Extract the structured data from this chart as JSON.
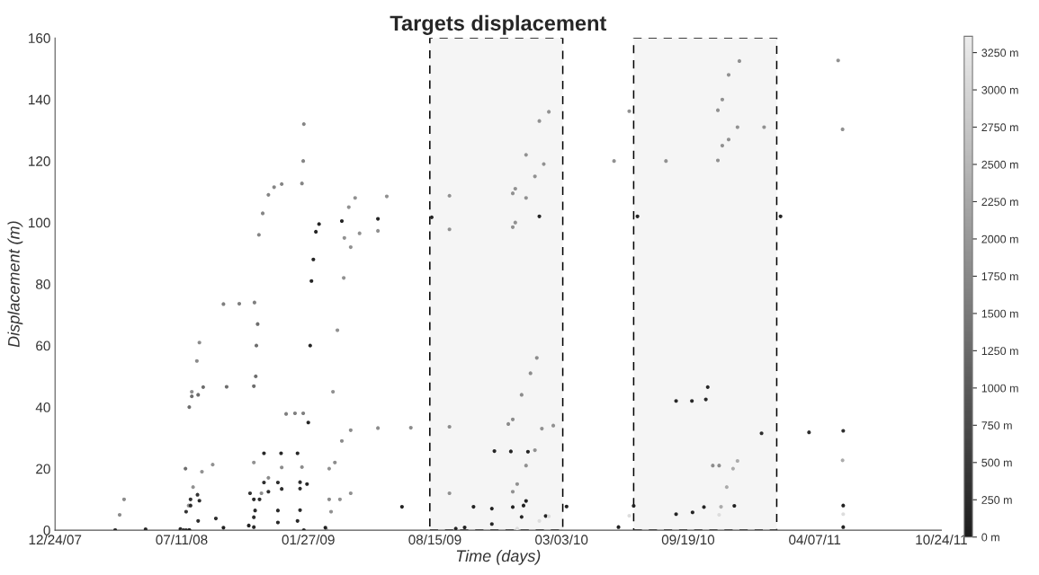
{
  "chart_data": {
    "type": "scatter",
    "title": "Targets displacement",
    "xlabel": "Time (days)",
    "ylabel": "Displacement (m)",
    "marker": "circle",
    "grid": false,
    "xlim": [
      "2007-12-24",
      "2011-10-24"
    ],
    "xticks": [
      {
        "value": "2007-12-24",
        "label": "12/24/07"
      },
      {
        "value": "2008-07-11",
        "label": "07/11/08"
      },
      {
        "value": "2009-01-27",
        "label": "01/27/09"
      },
      {
        "value": "2009-08-15",
        "label": "08/15/09"
      },
      {
        "value": "2010-03-03",
        "label": "03/03/10"
      },
      {
        "value": "2010-09-19",
        "label": "09/19/10"
      },
      {
        "value": "2011-04-07",
        "label": "04/07/11"
      },
      {
        "value": "2011-10-24",
        "label": "10/24/11"
      }
    ],
    "ylim": [
      0,
      160
    ],
    "yticks": [
      0,
      20,
      40,
      60,
      80,
      100,
      120,
      140,
      160
    ],
    "clim": [
      0,
      3360
    ],
    "cticks": [
      {
        "value": 0,
        "label": "0 m"
      },
      {
        "value": 250,
        "label": "250 m"
      },
      {
        "value": 500,
        "label": "500 m"
      },
      {
        "value": 750,
        "label": "750 m"
      },
      {
        "value": 1000,
        "label": "1000 m"
      },
      {
        "value": 1250,
        "label": "1250 m"
      },
      {
        "value": 1500,
        "label": "1500 m"
      },
      {
        "value": 1750,
        "label": "1750 m"
      },
      {
        "value": 2000,
        "label": "2000 m"
      },
      {
        "value": 2250,
        "label": "2250 m"
      },
      {
        "value": 2500,
        "label": "2500 m"
      },
      {
        "value": 2750,
        "label": "2750 m"
      },
      {
        "value": 3000,
        "label": "3000 m"
      },
      {
        "value": 3250,
        "label": "3250 m"
      }
    ],
    "bands": [
      {
        "axis": "x",
        "from": "2009-08-07",
        "to": "2010-03-05",
        "color": "#000000"
      },
      {
        "axis": "x",
        "from": "2010-06-25",
        "to": "2011-02-06",
        "color": "#000000"
      }
    ],
    "series": [
      {
        "x": [
          "2008-03-28",
          "2008-04-04",
          "2008-04-11"
        ],
        "values": [
          0,
          5,
          10
        ],
        "cvalues": [
          1800,
          1800,
          1800
        ]
      },
      {
        "x": [
          "2008-03-28",
          "2008-05-15",
          "2008-07-09"
        ],
        "values": [
          0,
          0.3,
          0.4
        ],
        "cvalues": [
          200,
          200,
          200
        ]
      },
      {
        "x": [
          "2008-07-13",
          "2008-07-17",
          "2008-07-23",
          "2008-07-27",
          "2008-08-06",
          "2008-08-14",
          "2008-09-20",
          "2008-11-02",
          "2008-11-05",
          "2008-11-06",
          "2008-11-08"
        ],
        "values": [
          0,
          20,
          40,
          43.5,
          44,
          46.5,
          46.6,
          46.8,
          50,
          60,
          67
        ],
        "cvalues": [
          1300,
          1300,
          1300,
          1300,
          1300,
          1300,
          1300,
          1300,
          1300,
          1300,
          1300
        ]
      },
      {
        "x": [
          "2008-07-27",
          "2008-08-04",
          "2008-08-08"
        ],
        "values": [
          45,
          55,
          61
        ],
        "cvalues": [
          1800,
          1800,
          1800
        ]
      },
      {
        "x": [
          "2008-09-15",
          "2008-10-10",
          "2008-11-03"
        ],
        "values": [
          73.5,
          73.6,
          74
        ],
        "cvalues": [
          1600,
          1600,
          1600
        ]
      },
      {
        "x": [
          "2008-11-10",
          "2008-11-16",
          "2008-11-25",
          "2008-12-04",
          "2008-12-16",
          "2009-01-17",
          "2009-01-19",
          "2009-01-20"
        ],
        "values": [
          96,
          103,
          109,
          111.5,
          112.5,
          112.7,
          120,
          132
        ],
        "cvalues": [
          1700,
          1700,
          1700,
          1700,
          1700,
          1700,
          1700,
          1700
        ]
      },
      {
        "x": [
          "2008-07-22",
          "2008-07-29",
          "2008-08-12",
          "2008-08-29",
          "2008-11-02"
        ],
        "values": [
          8,
          14,
          19,
          21.3,
          22
        ],
        "cvalues": [
          1900,
          1900,
          1900,
          1900,
          1900
        ]
      },
      {
        "x": [
          "2008-07-14",
          "2008-07-18",
          "2008-07-25",
          "2008-08-05",
          "2008-10-27"
        ],
        "values": [
          0,
          6,
          10,
          11.5,
          12
        ],
        "cvalues": [
          400,
          400,
          400,
          400,
          400
        ]
      },
      {
        "x": [
          "2008-07-18",
          "2008-07-25",
          "2008-08-08",
          "2008-11-02"
        ],
        "values": [
          0,
          8,
          9.6,
          10
        ],
        "cvalues": [
          250,
          250,
          250,
          250
        ]
      },
      {
        "x": [
          "2008-07-23",
          "2008-08-06",
          "2008-09-03",
          "2008-11-02"
        ],
        "values": [
          0,
          3,
          3.8,
          4.2
        ],
        "cvalues": [
          300,
          300,
          300,
          300
        ]
      },
      {
        "x": [
          "2008-07-23",
          "2008-09-15",
          "2008-10-25"
        ],
        "values": [
          0,
          0.8,
          1.5
        ],
        "cvalues": [
          100,
          100,
          100
        ]
      },
      {
        "x": [
          "2008-11-18",
          "2008-12-15",
          "2009-01-10"
        ],
        "values": [
          25,
          25,
          25
        ],
        "cvalues": [
          200,
          200,
          200
        ]
      },
      {
        "x": [
          "2008-11-14",
          "2008-11-25",
          "2008-12-16",
          "2009-01-17"
        ],
        "values": [
          12,
          17,
          20.4,
          20.5
        ],
        "cvalues": [
          1800,
          1800,
          1800,
          1800
        ]
      },
      {
        "x": [
          "2008-11-18",
          "2008-12-10",
          "2009-01-14"
        ],
        "values": [
          15.5,
          15.5,
          15.6
        ],
        "cvalues": [
          300,
          300,
          300
        ]
      },
      {
        "x": [
          "2008-11-11",
          "2008-11-25",
          "2008-12-16",
          "2009-01-14"
        ],
        "values": [
          10,
          12.5,
          13.4,
          13.5
        ],
        "cvalues": [
          300,
          300,
          300,
          300
        ]
      },
      {
        "x": [
          "2008-11-04",
          "2008-12-10",
          "2009-01-14"
        ],
        "values": [
          6.4,
          6.4,
          6.5
        ],
        "cvalues": [
          250,
          250,
          250
        ]
      },
      {
        "x": [
          "2008-11-02",
          "2008-12-10",
          "2009-01-10"
        ],
        "values": [
          1,
          2.5,
          3
        ],
        "cvalues": [
          200,
          200,
          200
        ]
      },
      {
        "x": [
          "2008-12-23",
          "2009-01-06",
          "2009-01-19"
        ],
        "values": [
          37.8,
          38,
          38
        ],
        "cvalues": [
          1600,
          1600,
          1600
        ]
      },
      {
        "x": [
          "2009-01-20",
          "2009-01-25",
          "2009-01-27",
          "2009-01-30",
          "2009-02-01",
          "2009-02-04",
          "2009-02-08",
          "2009-02-13",
          "2009-03-21",
          "2009-05-17",
          "2009-08-10",
          "2010-01-27",
          "2010-07-01",
          "2011-02-12"
        ],
        "values": [
          0,
          15,
          35,
          60,
          81,
          88,
          97,
          99.5,
          100.5,
          101.2,
          101.7,
          102,
          102,
          102
        ],
        "cvalues": [
          150,
          150,
          150,
          150,
          150,
          150,
          150,
          150,
          150,
          150,
          150,
          150,
          150,
          150
        ]
      },
      {
        "x": [
          "2009-03-25",
          "2009-04-01",
          "2009-04-11",
          "2009-05-31",
          "2009-09-07",
          "2009-12-16",
          "2009-12-20",
          "2010-01-06",
          "2010-01-27",
          "2010-02-11",
          "2010-06-18",
          "2010-11-05",
          "2010-11-12",
          "2010-11-22",
          "2010-12-09",
          "2011-05-14"
        ],
        "values": [
          95,
          105,
          108,
          108.5,
          108.7,
          109.5,
          111,
          122,
          133,
          136,
          136.2,
          136.5,
          140,
          148,
          152.5,
          152.7
        ],
        "cvalues": [
          1900,
          1900,
          1900,
          1900,
          1900,
          1900,
          1900,
          1900,
          1900,
          1900,
          1900,
          1900,
          1900,
          1900,
          1900,
          1900
        ]
      },
      {
        "x": [
          "2009-03-01",
          "2009-03-07",
          "2009-03-14",
          "2009-03-24",
          "2009-04-04",
          "2009-04-18",
          "2009-05-17",
          "2009-09-07",
          "2009-12-16",
          "2009-12-20",
          "2010-01-06",
          "2010-01-20",
          "2010-02-03"
        ],
        "values": [
          20,
          45,
          65,
          82,
          92,
          96.5,
          97.3,
          97.8,
          98.5,
          100,
          108,
          115,
          119
        ],
        "cvalues": [
          1900,
          1900,
          1900,
          1900,
          1900,
          1900,
          1900,
          1900,
          1900,
          1900,
          1900,
          1900,
          1900
        ]
      },
      {
        "x": [
          "2010-05-25",
          "2010-08-15",
          "2010-11-05",
          "2010-11-12",
          "2010-11-22",
          "2010-12-06",
          "2011-01-17",
          "2011-05-21"
        ],
        "values": [
          120,
          120,
          120.2,
          125,
          127,
          131,
          131,
          130.3
        ],
        "cvalues": [
          1900,
          1900,
          1900,
          1900,
          1900,
          1900,
          1900,
          1900
        ]
      },
      {
        "x": [
          "2009-03-01",
          "2009-03-10",
          "2009-03-21",
          "2009-04-04",
          "2009-05-17",
          "2009-07-08",
          "2009-09-07",
          "2009-12-09",
          "2009-12-16",
          "2009-12-30",
          "2010-01-13",
          "2010-01-23"
        ],
        "values": [
          10,
          22,
          29,
          32.5,
          33.2,
          33.3,
          33.6,
          34.5,
          36,
          44,
          51,
          56
        ],
        "cvalues": [
          1800,
          1800,
          1800,
          1800,
          1800,
          1800,
          1800,
          1800,
          1800,
          1800,
          1800,
          1800
        ]
      },
      {
        "x": [
          "2009-02-25",
          "2009-03-04",
          "2009-03-18",
          "2009-04-04",
          "2009-09-07",
          "2009-12-16",
          "2009-12-23",
          "2010-01-06",
          "2010-01-20",
          "2010-01-31",
          "2010-02-18"
        ],
        "values": [
          0,
          6,
          10,
          12,
          12,
          12.5,
          15,
          21,
          26,
          33,
          34
        ],
        "cvalues": [
          1900,
          1900,
          1900,
          1900,
          1900,
          1900,
          1900,
          1900,
          1900,
          1900,
          1900
        ]
      },
      {
        "x": [
          "2009-11-17",
          "2009-12-13",
          "2010-01-09"
        ],
        "values": [
          25.7,
          25.6,
          25.5
        ],
        "cvalues": [
          150,
          150,
          150
        ]
      },
      {
        "x": [
          "2009-06-24",
          "2009-10-15",
          "2010-03-11"
        ],
        "values": [
          7.6,
          7.6,
          7.7
        ],
        "cvalues": [
          100,
          100,
          100
        ]
      },
      {
        "x": [
          "2010-06-25",
          "2010-12-01",
          "2011-05-22"
        ],
        "values": [
          7.9,
          7.9,
          8
        ],
        "cvalues": [
          100,
          100,
          100
        ]
      },
      {
        "x": [
          "2009-09-17",
          "2009-11-13",
          "2009-12-30",
          "2010-02-06"
        ],
        "values": [
          0.5,
          2,
          4.3,
          4.6
        ],
        "cvalues": [
          150,
          150,
          150,
          150
        ]
      },
      {
        "x": [
          "2009-11-13",
          "2009-12-16",
          "2010-01-02",
          "2010-01-06"
        ],
        "values": [
          7,
          7.5,
          8,
          9.5
        ],
        "cvalues": [
          100,
          100,
          100,
          100
        ]
      },
      {
        "x": [
          "2009-12-23",
          "2010-01-27",
          "2010-02-11",
          "2010-06-18",
          "2010-11-07",
          "2011-05-22"
        ],
        "values": [
          0.5,
          3,
          4.5,
          4.7,
          5,
          5.2
        ],
        "cvalues": [
          3100,
          3100,
          3100,
          3100,
          3100,
          3100
        ]
      },
      {
        "x": [
          "2010-08-31",
          "2010-09-25",
          "2010-10-17",
          "2010-10-20"
        ],
        "values": [
          42,
          42,
          42.5,
          46.5
        ],
        "cvalues": [
          200,
          200,
          200,
          200
        ]
      },
      {
        "x": [
          "2011-01-13",
          "2011-03-29",
          "2011-05-22"
        ],
        "values": [
          31.5,
          31.8,
          32.3
        ],
        "cvalues": [
          300,
          300,
          300
        ]
      },
      {
        "x": [
          "2010-10-28",
          "2010-11-07"
        ],
        "values": [
          21,
          21
        ],
        "cvalues": [
          1800,
          1800
        ]
      },
      {
        "x": [
          "2010-11-10",
          "2010-11-19",
          "2010-11-29",
          "2010-12-06",
          "2011-05-21"
        ],
        "values": [
          7.6,
          14,
          20,
          22.5,
          22.7
        ],
        "cvalues": [
          2300,
          2300,
          2300,
          2300,
          2300
        ]
      },
      {
        "x": [
          "2010-08-31",
          "2010-09-26",
          "2010-10-14"
        ],
        "values": [
          5.2,
          5.8,
          7.5
        ],
        "cvalues": [
          150,
          150,
          150
        ]
      },
      {
        "x": [
          "2009-02-23",
          "2009-10-01",
          "2010-06-01",
          "2011-05-22"
        ],
        "values": [
          0.8,
          0.9,
          1,
          1
        ],
        "cvalues": [
          100,
          100,
          100,
          100
        ]
      }
    ]
  }
}
